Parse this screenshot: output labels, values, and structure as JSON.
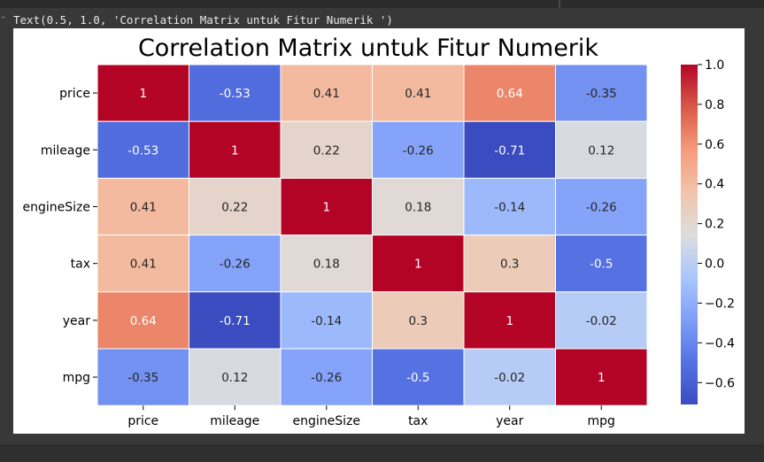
{
  "output": {
    "text": "Text(0.5, 1.0, 'Correlation Matrix untuk Fitur Numerik ')"
  },
  "chart_data": {
    "type": "heatmap",
    "title": "Correlation Matrix untuk Fitur Numerik",
    "rows": [
      "price",
      "mileage",
      "engineSize",
      "tax",
      "year",
      "mpg"
    ],
    "columns": [
      "price",
      "mileage",
      "engineSize",
      "tax",
      "year",
      "mpg"
    ],
    "values": [
      [
        1,
        -0.53,
        0.41,
        0.41,
        0.64,
        -0.35
      ],
      [
        -0.53,
        1,
        0.22,
        -0.26,
        -0.71,
        0.12
      ],
      [
        0.41,
        0.22,
        1,
        0.18,
        -0.14,
        -0.26
      ],
      [
        0.41,
        -0.26,
        0.18,
        1,
        0.3,
        -0.5
      ],
      [
        0.64,
        -0.71,
        -0.14,
        0.3,
        1,
        -0.02
      ],
      [
        -0.35,
        0.12,
        -0.26,
        -0.5,
        -0.02,
        1
      ]
    ],
    "colormap": "coolwarm",
    "annotated": true,
    "colorbar": {
      "range": [
        -0.71,
        1.0
      ],
      "ticks": [
        1.0,
        0.8,
        0.6,
        0.4,
        0.2,
        0.0,
        -0.2,
        -0.4,
        -0.6
      ],
      "tick_labels": [
        "1.0",
        "0.8",
        "0.6",
        "0.4",
        "0.2",
        "0.0",
        "−0.2",
        "−0.4",
        "−0.6"
      ],
      "placement": "right"
    }
  }
}
